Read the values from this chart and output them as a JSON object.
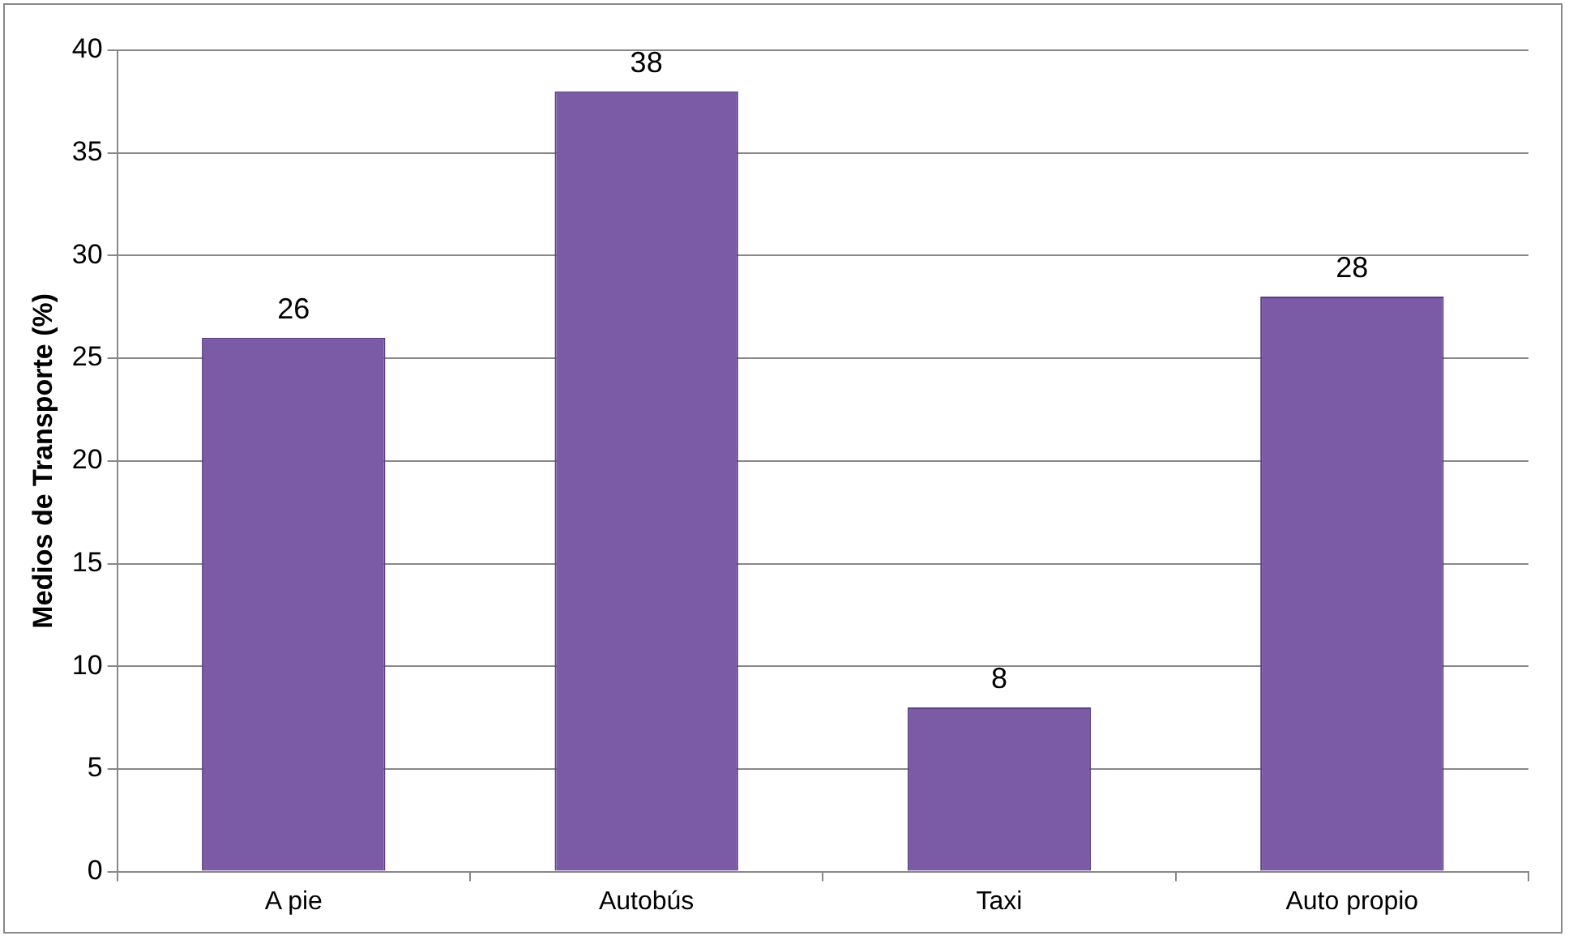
{
  "chart_data": {
    "type": "bar",
    "ylabel": "Medios de Transporte (%)",
    "categories": [
      "A pie",
      "Autobús",
      "Taxi",
      "Auto propio"
    ],
    "values": [
      26,
      38,
      8,
      28
    ],
    "color": "#7b5aa6",
    "ylim": [
      0,
      40
    ],
    "yticks": [
      0,
      5,
      10,
      15,
      20,
      25,
      30,
      35,
      40
    ],
    "grid": "y",
    "data_labels": true,
    "legend": false
  }
}
